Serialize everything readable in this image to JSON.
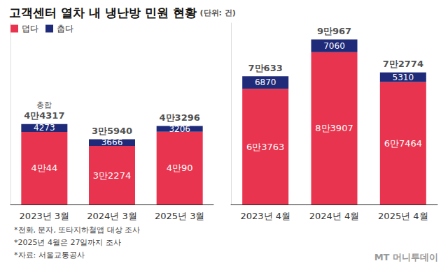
{
  "chart_data": [
    {
      "type": "bar",
      "title": "고객센터 열차 내 냉난방 민원 현황",
      "subtitle": "(단위: 건)",
      "stacked": true,
      "data_labels": true,
      "tick_labels": "x",
      "grid": false,
      "legend": "top-left",
      "categories": [
        "2023년 3월",
        "2024년 3월",
        "2025년 3월"
      ],
      "series": [
        {
          "name": "덥다",
          "color": "#e8344e",
          "values": [
            40044,
            32274,
            40090
          ],
          "value_labels": [
            "4만44",
            "3만2274",
            "4만90"
          ]
        },
        {
          "name": "춥다",
          "color": "#1f2a78",
          "values": [
            4273,
            3666,
            3206
          ],
          "value_labels": [
            "4273",
            "3666",
            "3206"
          ]
        }
      ],
      "totals": [
        44317,
        35940,
        43296
      ],
      "total_labels": [
        "4만4317",
        "3만5940",
        "4만3296"
      ],
      "annotation": "총합",
      "ylim": [
        0,
        100000
      ],
      "yticks": [
        0
      ]
    },
    {
      "type": "bar",
      "stacked": true,
      "data_labels": true,
      "tick_labels": "x",
      "grid": false,
      "categories": [
        "2023년 4월",
        "2024년 4월",
        "2025년 4월"
      ],
      "series": [
        {
          "name": "덥다",
          "color": "#e8344e",
          "values": [
            63763,
            83907,
            67464
          ],
          "value_labels": [
            "6만3763",
            "8만3907",
            "6만7464"
          ]
        },
        {
          "name": "춥다",
          "color": "#1f2a78",
          "values": [
            6870,
            7060,
            5310
          ],
          "value_labels": [
            "6870",
            "7060",
            "5310"
          ]
        }
      ],
      "totals": [
        70633,
        90967,
        72774
      ],
      "total_labels": [
        "7만633",
        "9만967",
        "7만2774"
      ],
      "ylim": [
        0,
        100000
      ],
      "yticks": [
        0
      ]
    }
  ],
  "footnotes": [
    "*전화, 문자, 또타지하철앱 대상 조사",
    "*2025년 4월은 27일까지 조사",
    "*자료: 서울교통공사"
  ],
  "watermark": "MT 머니투데이"
}
